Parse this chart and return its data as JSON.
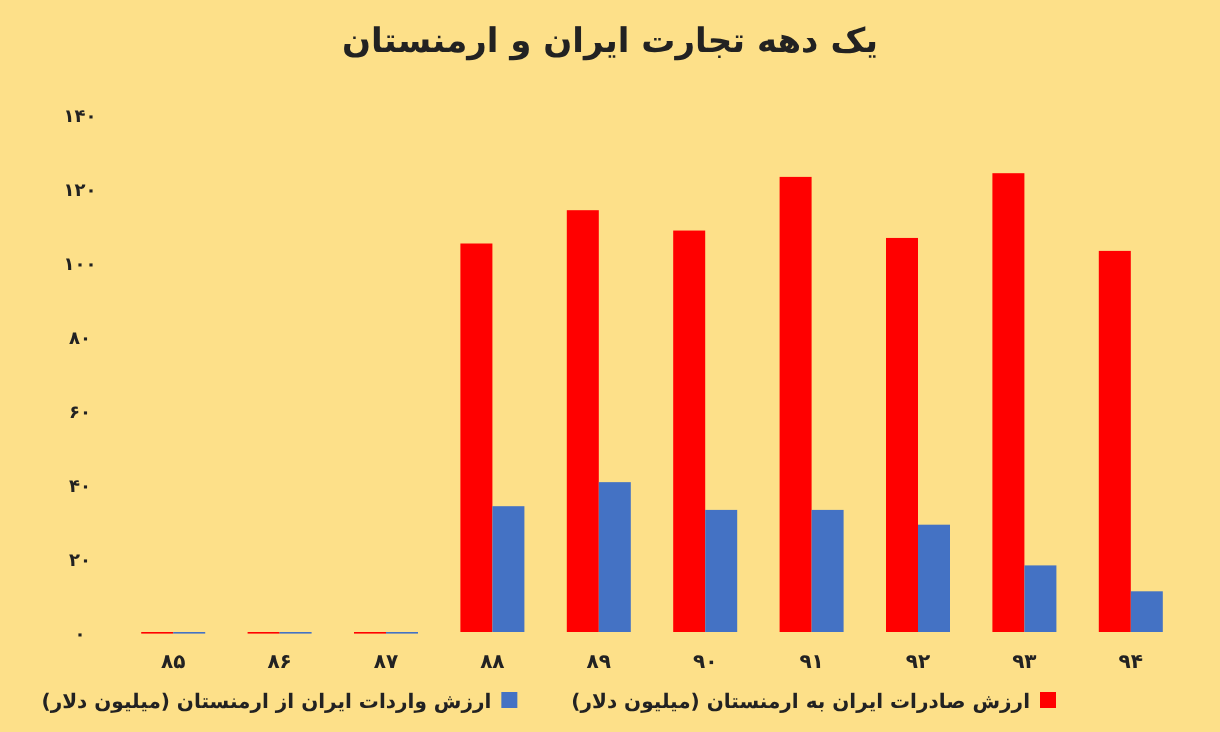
{
  "chart_data": {
    "type": "bar",
    "title": "یک دهه تجارت ایران و ارمنستان",
    "categories": [
      "۸۵",
      "۸۶",
      "۸۷",
      "۸۸",
      "۸۹",
      "۹۰",
      "۹۱",
      "۹۲",
      "۹۳",
      "۹۴"
    ],
    "series": [
      {
        "name": "ارزش صادرات ایران به ارمنستان (میلیون دلار)",
        "color": "#ff0000",
        "values": [
          0,
          0,
          0,
          105,
          114,
          108.5,
          123,
          106.5,
          124,
          103
        ]
      },
      {
        "name": "ارزش واردات ایران از ارمنستان (میلیون دلار)",
        "color": "#4472c4",
        "values": [
          0,
          0,
          0,
          34,
          40.5,
          33,
          33,
          29,
          18,
          11
        ]
      }
    ],
    "ylim": [
      0,
      140
    ],
    "yticks": [
      {
        "value": 0,
        "label": "۰"
      },
      {
        "value": 20,
        "label": "۲۰"
      },
      {
        "value": 40,
        "label": "۴۰"
      },
      {
        "value": 60,
        "label": "۶۰"
      },
      {
        "value": 80,
        "label": "۸۰"
      },
      {
        "value": 100,
        "label": "۱۰۰"
      },
      {
        "value": 120,
        "label": "۱۲۰"
      },
      {
        "value": 140,
        "label": "۱۴۰"
      }
    ],
    "grid": false,
    "legend": "bottom"
  }
}
